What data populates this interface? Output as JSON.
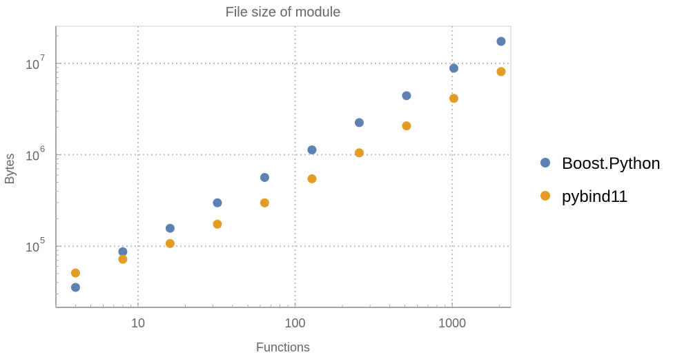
{
  "chart_data": {
    "type": "scatter",
    "title": "File size of module",
    "xlabel": "Functions",
    "ylabel": "Bytes",
    "xscale": "log",
    "yscale": "log",
    "xlim": [
      3.0,
      2360
    ],
    "ylim": [
      21400,
      25500000
    ],
    "grid": true,
    "legend_position": "right",
    "x_ticks": [
      {
        "value": 10,
        "label": "10"
      },
      {
        "value": 100,
        "label": "100"
      },
      {
        "value": 1000,
        "label": "1000"
      }
    ],
    "y_ticks": [
      {
        "value": 100000,
        "base": "10",
        "exp": "5"
      },
      {
        "value": 1000000,
        "base": "10",
        "exp": "6"
      },
      {
        "value": 10000000,
        "base": "10",
        "exp": "7"
      }
    ],
    "series": [
      {
        "name": "Boost.Python",
        "color": "#5E81B5",
        "x": [
          4,
          8,
          16,
          32,
          64,
          128,
          256,
          512,
          1024,
          2048
        ],
        "y": [
          35400,
          87000,
          157000,
          298000,
          565000,
          1130000,
          2250000,
          4430000,
          8850000,
          17400000
        ]
      },
      {
        "name": "pybind11",
        "color": "#E19C24",
        "x": [
          4,
          8,
          16,
          32,
          64,
          128,
          256,
          512,
          1024,
          2048
        ],
        "y": [
          50900,
          72000,
          107000,
          174000,
          298000,
          546000,
          1050000,
          2070000,
          4140000,
          8130000
        ]
      }
    ]
  }
}
